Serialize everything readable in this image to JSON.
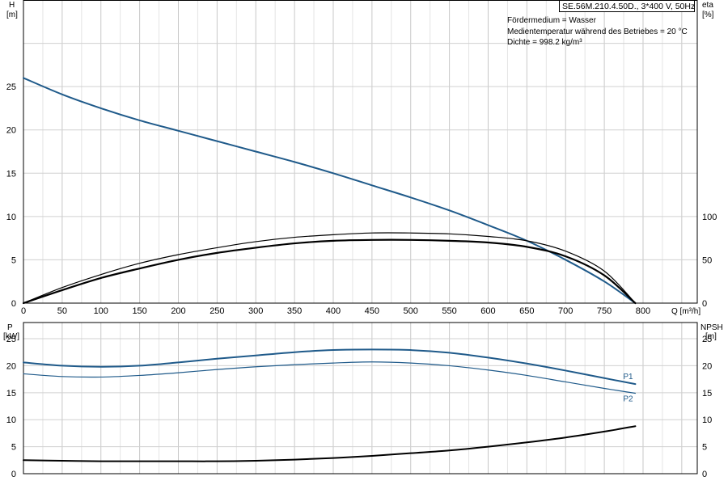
{
  "header": {
    "pump_label": "SE.56M.210.4.50D., 3*400 V, 50Hz",
    "conditions": [
      "Fördermedium = Wasser",
      "Medientemperatur während des Betriebes = 20 °C",
      "Dichte = 998.2 kg/m³"
    ]
  },
  "chart_data": [
    {
      "type": "line",
      "panel": "upper",
      "x_unit_label": "Q [m³/h]",
      "xlim": [
        0,
        870
      ],
      "xticks": [
        0,
        50,
        100,
        150,
        200,
        250,
        300,
        350,
        400,
        450,
        500,
        550,
        600,
        650,
        700,
        750,
        800
      ],
      "left_axis": {
        "label_line1": "H",
        "label_line2": "[m]",
        "ylim": [
          0,
          35
        ],
        "ticks": [
          0,
          5,
          10,
          15,
          20,
          25
        ]
      },
      "right_axis": {
        "label_line1": "eta",
        "label_line2": "[%]",
        "ylim": [
          0,
          350
        ],
        "ticks": [
          0,
          50,
          100
        ]
      },
      "grid": true,
      "series": [
        {
          "key": "H",
          "axis": "left",
          "color": "#1f5a8a",
          "x": [
            0,
            50,
            100,
            150,
            200,
            250,
            300,
            350,
            400,
            450,
            500,
            550,
            600,
            650,
            700,
            750,
            790
          ],
          "y": [
            26.0,
            24.1,
            22.5,
            21.1,
            19.9,
            18.7,
            17.5,
            16.3,
            15.0,
            13.6,
            12.2,
            10.7,
            9.0,
            7.2,
            5.0,
            2.5,
            0
          ]
        },
        {
          "key": "eta_thin",
          "axis": "right",
          "color": "#000000",
          "x": [
            0,
            50,
            100,
            150,
            200,
            250,
            300,
            350,
            400,
            450,
            500,
            550,
            600,
            650,
            700,
            750,
            790
          ],
          "y": [
            0,
            18,
            33,
            46,
            56,
            64,
            71,
            76,
            79,
            81,
            81,
            80,
            77,
            72,
            60,
            37,
            0
          ]
        },
        {
          "key": "eta_thick",
          "axis": "right",
          "color": "#000000",
          "x": [
            0,
            50,
            100,
            150,
            200,
            250,
            300,
            350,
            400,
            450,
            500,
            550,
            600,
            650,
            700,
            750,
            790
          ],
          "y": [
            0,
            15,
            29,
            40,
            50,
            58,
            64,
            69,
            72,
            73,
            73,
            72,
            70,
            65,
            54,
            32,
            0
          ]
        }
      ]
    },
    {
      "type": "line",
      "panel": "lower",
      "xlim": [
        0,
        870
      ],
      "left_axis": {
        "label_line1": "P",
        "label_line2": "[kW]",
        "ylim": [
          0,
          28
        ],
        "ticks": [
          0,
          5,
          10,
          15,
          20,
          25
        ]
      },
      "right_axis": {
        "label_line1": "NPSH",
        "label_line2": "[m]",
        "ylim": [
          0,
          28
        ],
        "ticks": [
          0,
          5,
          10,
          15,
          20,
          25
        ]
      },
      "grid": true,
      "series": [
        {
          "name": "P1",
          "axis": "left",
          "color": "#1f5a8a",
          "x": [
            0,
            50,
            100,
            150,
            200,
            250,
            300,
            350,
            400,
            450,
            500,
            550,
            600,
            650,
            700,
            750,
            790
          ],
          "y": [
            20.6,
            20.0,
            19.8,
            20.0,
            20.6,
            21.3,
            21.9,
            22.5,
            22.9,
            23.0,
            22.9,
            22.4,
            21.5,
            20.4,
            19.1,
            17.7,
            16.6
          ]
        },
        {
          "name": "P2",
          "axis": "left",
          "color": "#1f5a8a",
          "x": [
            0,
            50,
            100,
            150,
            200,
            250,
            300,
            350,
            400,
            450,
            500,
            550,
            600,
            650,
            700,
            750,
            790
          ],
          "y": [
            18.5,
            18.0,
            17.9,
            18.2,
            18.7,
            19.3,
            19.8,
            20.2,
            20.5,
            20.7,
            20.5,
            20.0,
            19.2,
            18.2,
            17.0,
            15.8,
            14.9
          ]
        },
        {
          "key": "NPSH",
          "axis": "right",
          "color": "#000000",
          "x": [
            0,
            50,
            100,
            150,
            200,
            250,
            300,
            350,
            400,
            450,
            500,
            550,
            600,
            650,
            700,
            750,
            790
          ],
          "y": [
            2.5,
            2.4,
            2.3,
            2.3,
            2.3,
            2.3,
            2.4,
            2.6,
            2.9,
            3.3,
            3.8,
            4.3,
            5.0,
            5.8,
            6.7,
            7.8,
            8.8
          ]
        }
      ]
    }
  ]
}
